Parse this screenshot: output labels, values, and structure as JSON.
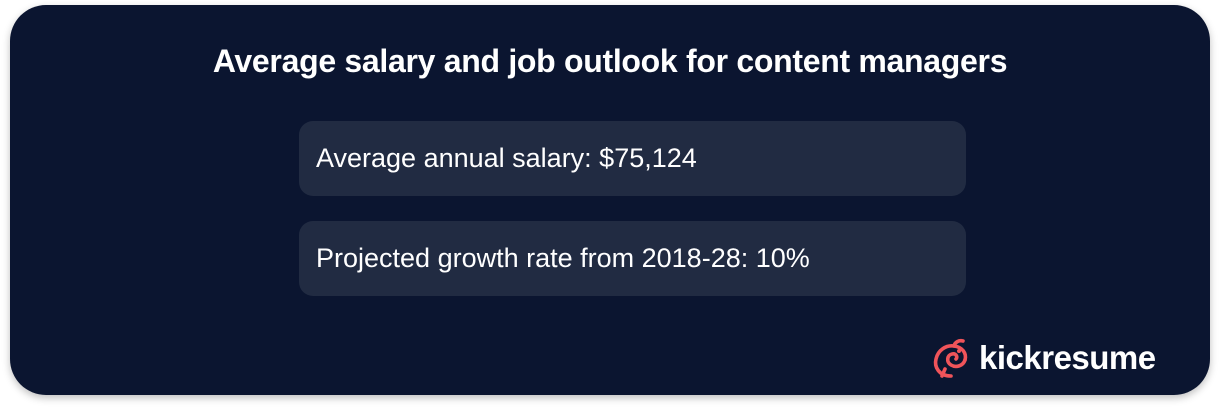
{
  "header": {
    "title": "Average salary and job outlook for content managers"
  },
  "items": [
    "Average annual salary: $75,124",
    "Projected growth rate from 2018-28: 10%"
  ],
  "logo": {
    "text": "kickresume"
  }
}
